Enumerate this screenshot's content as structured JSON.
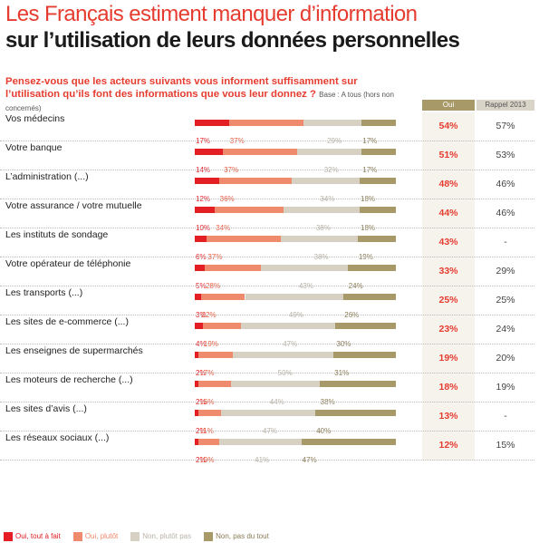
{
  "header": {
    "title_line1": "Les Français estiment manquer d’information",
    "title_line2": "sur l’utilisation de leurs données personnelles"
  },
  "question": {
    "text": "Pensez-vous que les acteurs suivants vous informent suffisamment sur l’utilisation qu’ils font des informations que vous leur donnez ?",
    "base": "Base : A tous (hors non concernés)"
  },
  "columns": {
    "oui": "Oui",
    "rappel": "Rappel 2013"
  },
  "colors": {
    "oui_tout_a_fait": "#e31e24",
    "oui_plutot": "#f08a6c",
    "non_plutot_pas": "#d7d1c3",
    "non_pas_du_tout": "#a89968"
  },
  "chart_data": {
    "type": "bar",
    "orientation": "horizontal",
    "stacked": true,
    "normalized": true,
    "xlim": [
      0,
      100
    ],
    "categories": [
      "Vos médecins",
      "Votre banque",
      "L’administration (...)",
      "Votre assurance / votre mutuelle",
      "Les instituts de sondage",
      "Votre opérateur de téléphonie",
      "Les transports (...)",
      "Les sites de e-commerce (...)",
      "Les enseignes de supermarchés",
      "Les moteurs de recherche (...)",
      "Les sites d’avis (...)",
      "Les réseaux sociaux (...)"
    ],
    "series": [
      {
        "name": "Oui, tout à fait",
        "values": [
          17,
          14,
          12,
          10,
          6,
          5,
          3,
          4,
          2,
          2,
          2,
          2
        ]
      },
      {
        "name": "Oui, plutôt",
        "values": [
          37,
          37,
          36,
          34,
          37,
          28,
          22,
          19,
          17,
          16,
          11,
          10
        ]
      },
      {
        "name": "Non, plutôt pas",
        "values": [
          29,
          32,
          34,
          38,
          38,
          43,
          49,
          47,
          50,
          44,
          47,
          41
        ]
      },
      {
        "name": "Non, pas du tout",
        "values": [
          17,
          17,
          18,
          18,
          19,
          24,
          26,
          30,
          31,
          38,
          40,
          47
        ]
      }
    ],
    "oui_total": [
      "54%",
      "51%",
      "48%",
      "44%",
      "43%",
      "33%",
      "25%",
      "23%",
      "19%",
      "18%",
      "13%",
      "12%"
    ],
    "rappel_2013": [
      "57%",
      "53%",
      "46%",
      "46%",
      "-",
      "29%",
      "25%",
      "24%",
      "20%",
      "19%",
      "-",
      "15%"
    ],
    "legend_position": "bottom-left"
  }
}
